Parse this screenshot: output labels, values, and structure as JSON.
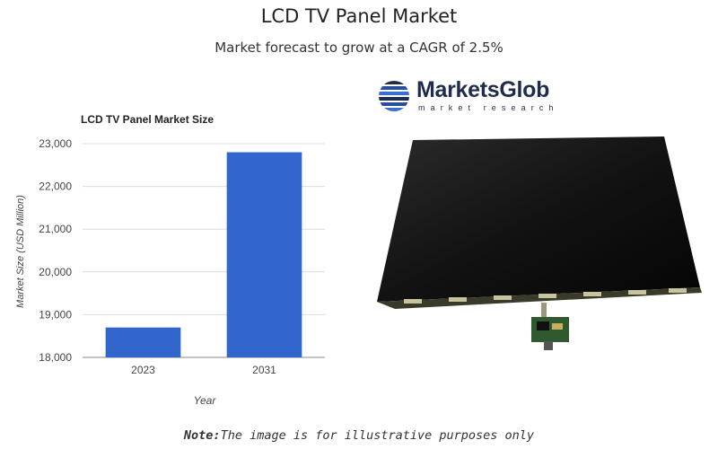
{
  "header": {
    "title": "LCD TV Panel Market",
    "subtitle": "Market forecast to grow at a CAGR of 2.5%"
  },
  "chart_data": {
    "type": "bar",
    "title": "LCD TV Panel Market Size",
    "xlabel": "Year",
    "ylabel": "Market Size (USD Million)",
    "categories": [
      "2023",
      "2031"
    ],
    "values": [
      18700,
      22800
    ],
    "ylim": [
      18000,
      23000
    ],
    "yticks": [
      18000,
      19000,
      20000,
      21000,
      22000,
      23000
    ],
    "ytick_labels": [
      "18,000",
      "19,000",
      "20,000",
      "21,000",
      "22,000",
      "23,000"
    ],
    "bar_color": "#3366cc",
    "grid": true,
    "legend": "none"
  },
  "logo": {
    "name": "MarketsGlob",
    "tagline": "market research",
    "color": "#1f2d4d"
  },
  "illustration": {
    "subject": "lcd-tv-panel-photo"
  },
  "note": {
    "label": "Note:",
    "text": "The image is for illustrative purposes only"
  }
}
